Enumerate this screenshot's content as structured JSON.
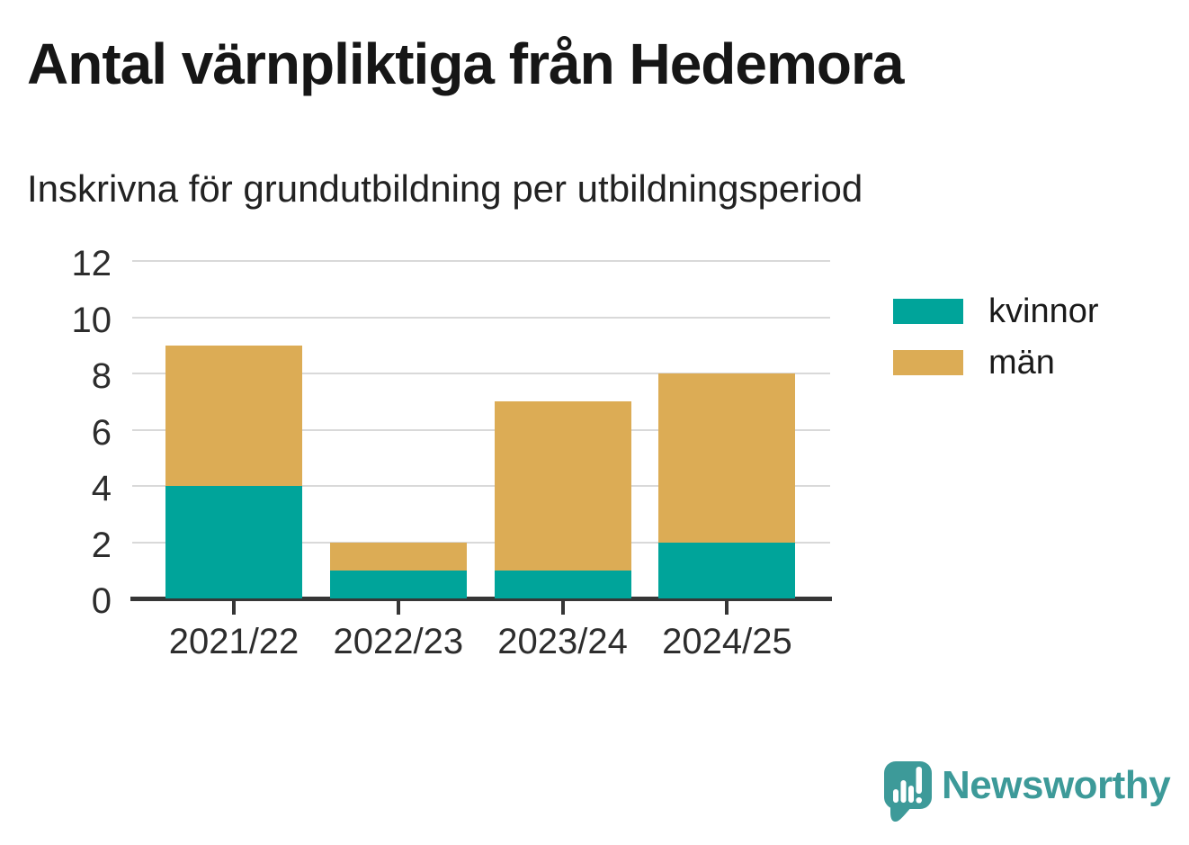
{
  "header": {
    "title": "Antal värnpliktiga från Hedemora",
    "subtitle": "Inskrivna för grundutbildning per utbildningsperiod"
  },
  "chart_data": {
    "type": "bar",
    "stacked": true,
    "title": "Antal värnpliktiga från Hedemora",
    "subtitle": "Inskrivna för grundutbildning per utbildningsperiod",
    "categories": [
      "2021/22",
      "2022/23",
      "2023/24",
      "2024/25"
    ],
    "series": [
      {
        "name": "kvinnor",
        "color": "#00a49a",
        "values": [
          4,
          1,
          1,
          2
        ]
      },
      {
        "name": "män",
        "color": "#dcac55",
        "values": [
          5,
          1,
          6,
          6
        ]
      }
    ],
    "totals": [
      9,
      2,
      7,
      8
    ],
    "xlabel": "",
    "ylabel": "",
    "ylim": [
      0,
      12
    ],
    "yticks": [
      0,
      2,
      4,
      6,
      8,
      10,
      12
    ],
    "grid": true,
    "legend_position": "right-top"
  },
  "colors": {
    "kvinnor": "#00a49a",
    "man": "#dcac55",
    "grid": "#d9d9d9",
    "axis": "#363636",
    "brand_teal": "#3d9a99"
  },
  "branding": {
    "logo_text": "Newsworthy"
  }
}
